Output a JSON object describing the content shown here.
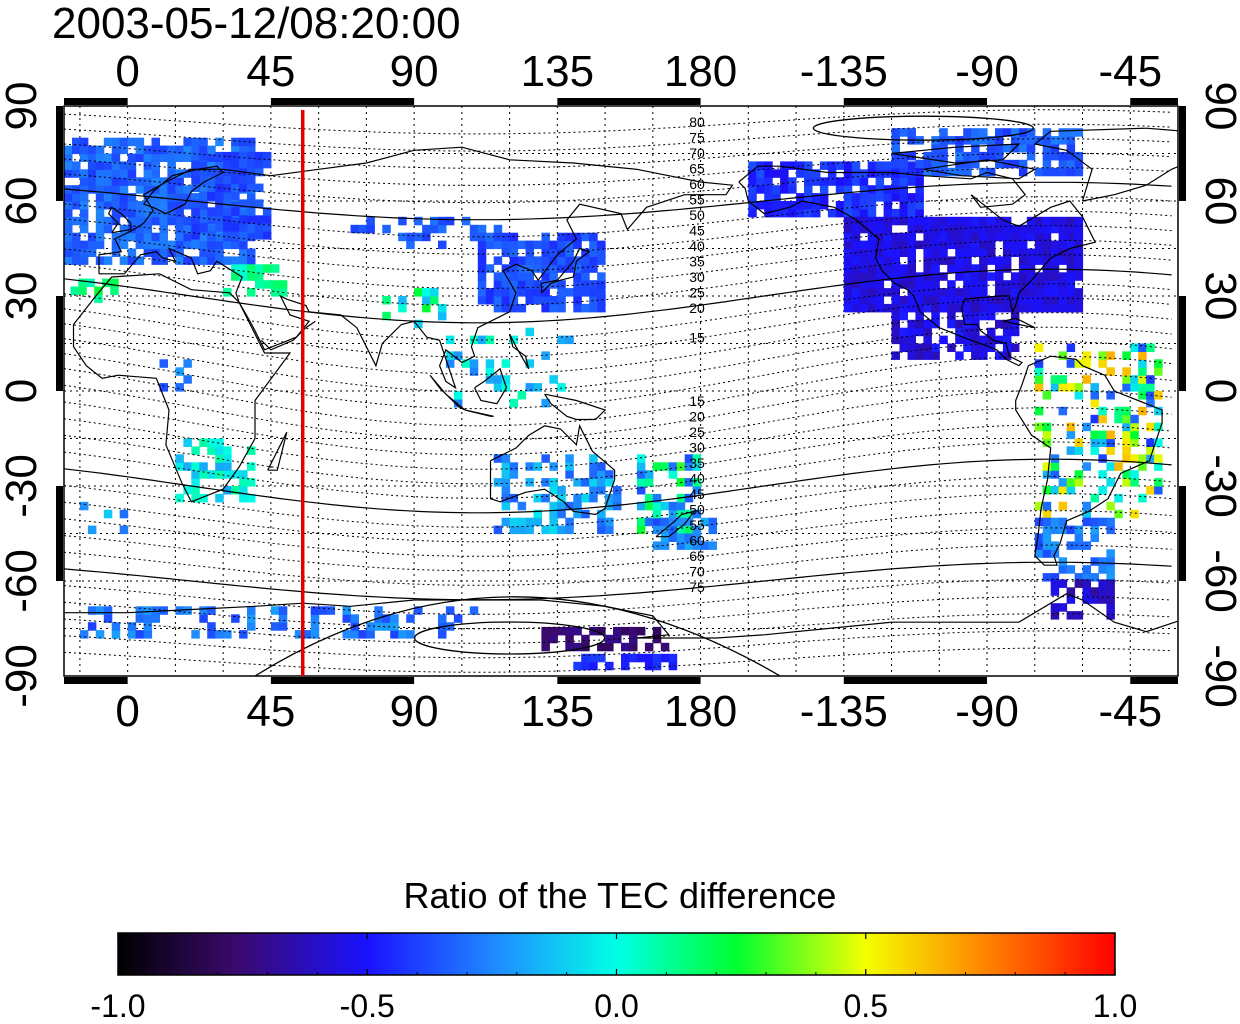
{
  "title": "2003-05-12/08:20:00",
  "map": {
    "x_ticks": [
      "0",
      "45",
      "90",
      "135",
      "180",
      "-135",
      "-90",
      "-45"
    ],
    "y_ticks": [
      "90",
      "60",
      "30",
      "0",
      "-30",
      "-60",
      "-90"
    ],
    "lon_range": [
      -20,
      330
    ],
    "lat_range": [
      -90,
      90
    ],
    "meridian_marker_lon": 55,
    "grid": "dotted"
  },
  "contour_labels_north": [
    "80",
    "75",
    "70",
    "65",
    "60",
    "55",
    "50",
    "45",
    "40",
    "35",
    "30",
    "25",
    "20",
    "15"
  ],
  "contour_labels_south": [
    "15",
    "20",
    "25",
    "30",
    "35",
    "40",
    "45",
    "50",
    "55",
    "60",
    "65",
    "70",
    "75"
  ],
  "colorbar": {
    "title": "Ratio of the TEC difference",
    "ticks": [
      "-1.0",
      "-0.5",
      "0.0",
      "0.5",
      "1.0"
    ],
    "range": [
      -1.0,
      1.0
    ],
    "colormap": "jet-like (black-purple-blue-cyan-green-yellow-red)"
  },
  "colors": {
    "meridian_marker": "#e00000",
    "coastline": "#000000"
  }
}
